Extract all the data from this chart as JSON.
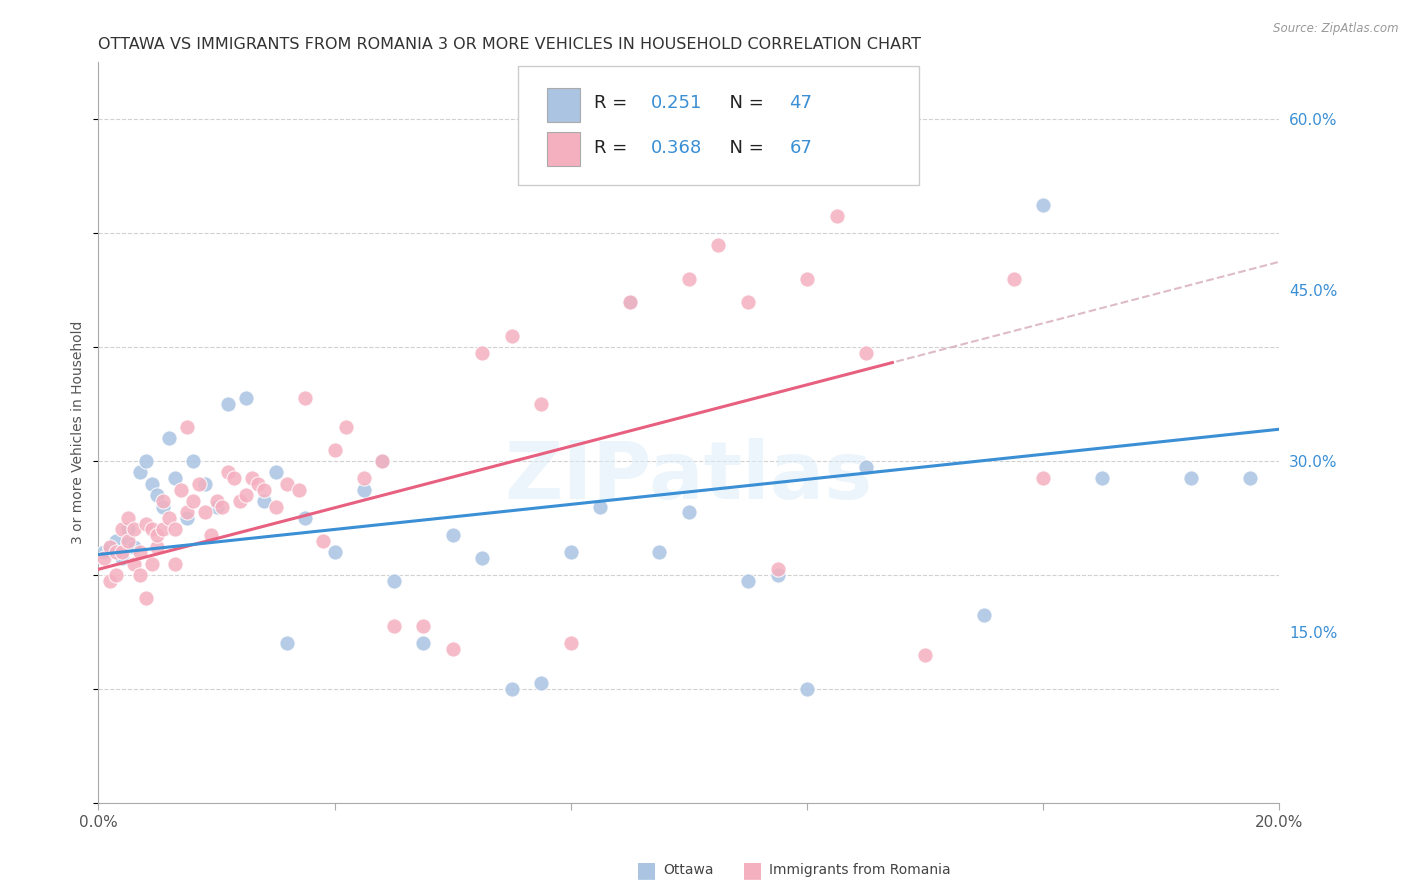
{
  "title": "OTTAWA VS IMMIGRANTS FROM ROMANIA 3 OR MORE VEHICLES IN HOUSEHOLD CORRELATION CHART",
  "source": "Source: ZipAtlas.com",
  "ylabel": "3 or more Vehicles in Household",
  "x_min": 0.0,
  "x_max": 0.2,
  "y_min": 0.0,
  "y_max": 0.65,
  "y_ticks": [
    0.15,
    0.3,
    0.45,
    0.6
  ],
  "y_tick_labels": [
    "15.0%",
    "30.0%",
    "45.0%",
    "60.0%"
  ],
  "x_tick_labels_show": [
    "0.0%",
    "20.0%"
  ],
  "ottawa_R": 0.251,
  "ottawa_N": 47,
  "romania_R": 0.368,
  "romania_N": 67,
  "ottawa_color": "#aac4e2",
  "ottawa_line_color": "#3b8fd4",
  "romania_color": "#f5b0c0",
  "romania_line_color": "#e86080",
  "ottawa_line_intercept": 0.218,
  "ottawa_line_slope": 0.55,
  "romania_line_intercept": 0.205,
  "romania_line_slope": 1.35,
  "watermark": "ZIPatlas",
  "title_fontsize": 11.5,
  "tick_fontsize": 11,
  "legend_fontsize": 13
}
